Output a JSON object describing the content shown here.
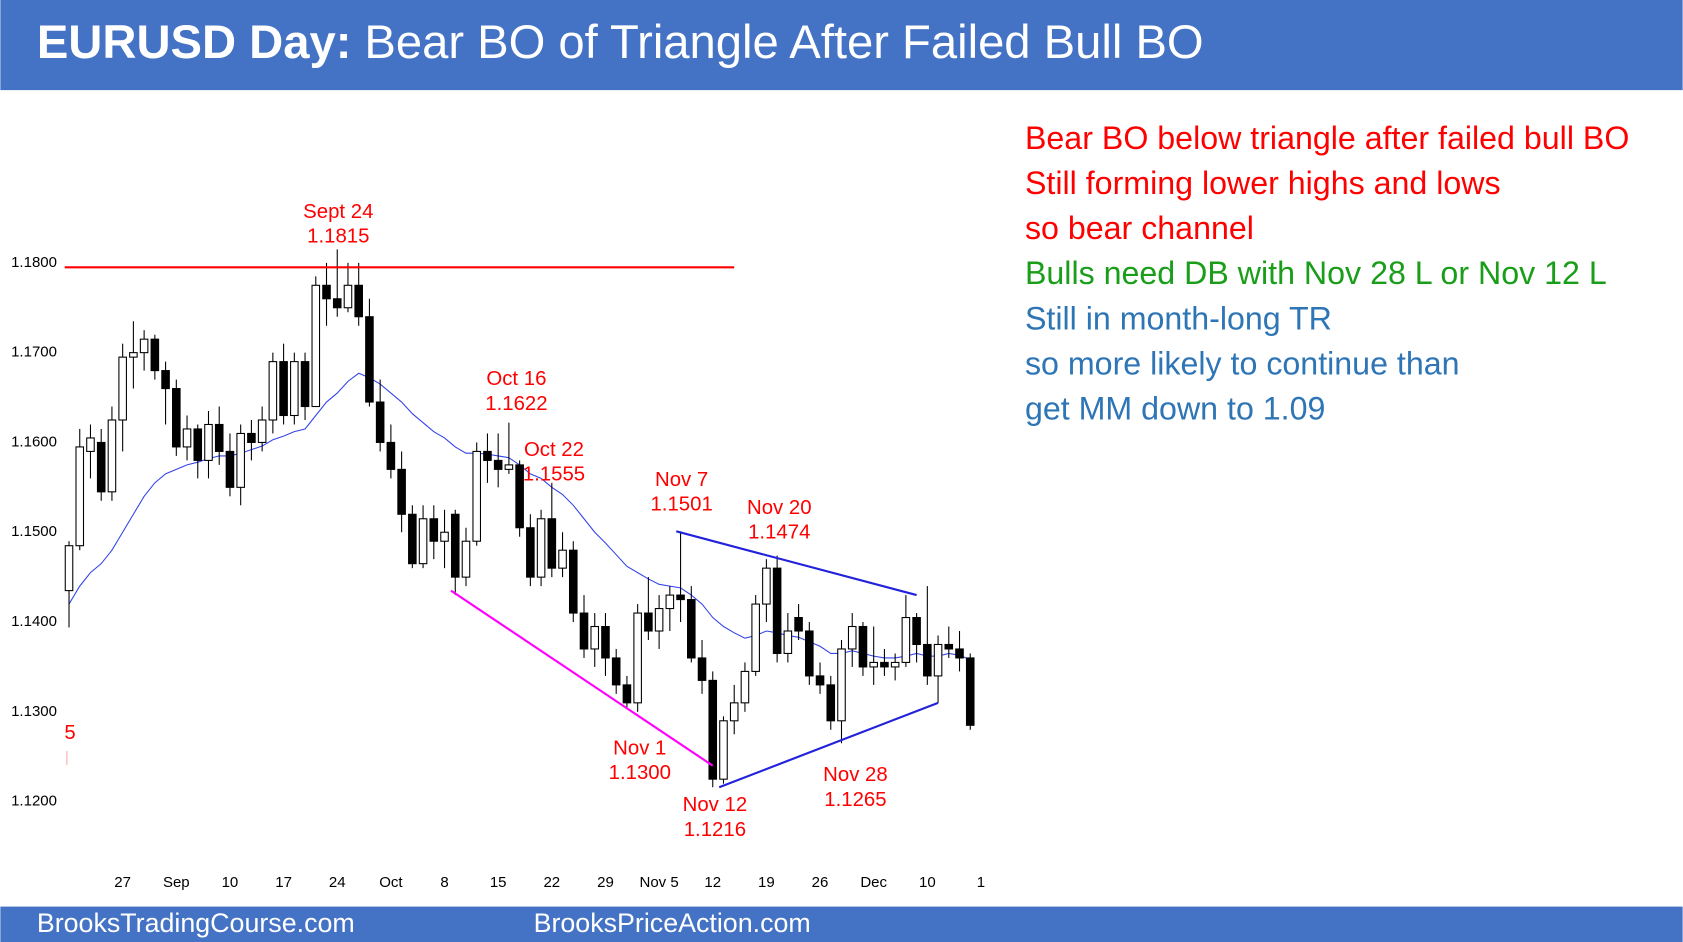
{
  "header": {
    "bold": "EURUSD Day:",
    "title": "Bear BO of Triangle After Failed Bull BO"
  },
  "footer": {
    "left": "BrooksTradingCourse.com",
    "right": "BrooksPriceAction.com"
  },
  "notes": [
    {
      "text": "Bear BO below triangle after failed bull BO",
      "color": "#ff0000"
    },
    {
      "text": "Still forming lower highs and lows",
      "color": "#ff0000"
    },
    {
      "text": "so bear channel",
      "color": "#ff0000"
    },
    {
      "text": "Bulls need DB with Nov 28 L or Nov 12 L",
      "color": "#1a9e1a"
    },
    {
      "text": "Still in month-long TR",
      "color": "#2e75b6"
    },
    {
      "text": "so more likely to continue than",
      "color": "#2e75b6"
    },
    {
      "text": "get MM down to 1.09",
      "color": "#2e75b6"
    }
  ],
  "chart_data": {
    "type": "candlestick",
    "bull_color": "#ffffff",
    "bear_color": "#000000",
    "categories": [
      null,
      null,
      null,
      null,
      null,
      "27",
      null,
      null,
      null,
      null,
      "Sep",
      null,
      null,
      null,
      null,
      "10",
      null,
      null,
      null,
      null,
      "17",
      null,
      null,
      null,
      null,
      "24",
      null,
      null,
      null,
      null,
      "Oct",
      null,
      null,
      null,
      null,
      "8",
      null,
      null,
      null,
      null,
      "15",
      null,
      null,
      null,
      null,
      "22",
      null,
      null,
      null,
      null,
      "29",
      null,
      null,
      null,
      null,
      "Nov 5",
      null,
      null,
      null,
      null,
      "12",
      null,
      null,
      null,
      null,
      "19",
      null,
      null,
      null,
      null,
      "26",
      null,
      null,
      null,
      null,
      "Dec",
      null,
      null,
      null,
      null,
      "10",
      null,
      null,
      null,
      null,
      "1"
    ],
    "open": [
      1.1435,
      1.1485,
      1.159,
      1.16,
      1.1545,
      1.1625,
      1.1695,
      1.17,
      1.1715,
      1.168,
      1.166,
      1.1595,
      1.1615,
      1.158,
      1.162,
      1.159,
      1.155,
      1.161,
      1.16,
      1.1625,
      1.169,
      1.163,
      1.169,
      1.164,
      1.1775,
      1.176,
      1.175,
      1.1775,
      1.174,
      1.1645,
      1.16,
      1.157,
      1.152,
      1.1465,
      1.1515,
      1.149,
      1.152,
      1.145,
      1.149,
      1.159,
      1.158,
      1.157,
      1.1575,
      1.1505,
      1.145,
      1.1515,
      1.146,
      1.148,
      1.141,
      1.137,
      1.1395,
      1.136,
      1.133,
      1.131,
      1.141,
      1.139,
      1.1415,
      1.143,
      1.1425,
      1.136,
      1.1335,
      1.1225,
      1.129,
      1.131,
      1.1345,
      1.142,
      1.146,
      1.1365,
      1.1405,
      1.139,
      1.134,
      1.133,
      1.129,
      1.137,
      1.1395,
      1.135,
      1.1355,
      1.135,
      1.1355,
      1.1405,
      1.1375,
      1.134,
      1.1375,
      1.137,
      1.136,
      null
    ],
    "high": [
      1.149,
      1.1615,
      1.162,
      1.1615,
      1.164,
      1.171,
      1.1735,
      1.1725,
      1.172,
      1.169,
      1.167,
      1.163,
      1.162,
      1.1635,
      1.164,
      1.161,
      1.162,
      1.1625,
      1.164,
      1.17,
      1.171,
      1.17,
      1.17,
      1.1785,
      1.18,
      1.1815,
      1.18,
      1.18,
      1.176,
      1.167,
      1.162,
      1.159,
      1.153,
      1.153,
      1.153,
      1.1525,
      1.1525,
      1.1505,
      1.16,
      1.161,
      1.161,
      1.1622,
      1.158,
      1.152,
      1.1525,
      1.1555,
      1.15,
      1.149,
      1.143,
      1.141,
      1.141,
      1.137,
      1.134,
      1.142,
      1.145,
      1.143,
      1.144,
      1.1501,
      1.144,
      1.138,
      1.1345,
      1.1295,
      1.133,
      1.1355,
      1.143,
      1.147,
      1.1474,
      1.141,
      1.142,
      1.14,
      1.1355,
      1.134,
      1.138,
      1.141,
      1.14,
      1.1395,
      1.137,
      1.1365,
      1.143,
      1.141,
      1.144,
      1.1385,
      1.1395,
      1.139,
      1.1365,
      null
    ],
    "low": [
      1.1394,
      1.148,
      1.156,
      1.1535,
      1.1535,
      1.159,
      1.166,
      1.168,
      1.167,
      1.162,
      1.1585,
      1.158,
      1.156,
      1.156,
      1.1575,
      1.154,
      1.153,
      1.158,
      1.159,
      1.161,
      1.162,
      1.162,
      1.1625,
      1.164,
      1.173,
      1.174,
      1.1745,
      1.173,
      1.164,
      1.159,
      1.156,
      1.15,
      1.146,
      1.146,
      1.147,
      1.146,
      1.143,
      1.144,
      1.1485,
      1.1555,
      1.155,
      1.1565,
      1.1495,
      1.144,
      1.144,
      1.145,
      1.145,
      1.14,
      1.136,
      1.135,
      1.134,
      1.132,
      1.1305,
      1.13,
      1.138,
      1.137,
      1.139,
      1.14,
      1.1355,
      1.132,
      1.1216,
      1.122,
      1.1275,
      1.13,
      1.134,
      1.14,
      1.1355,
      1.1355,
      1.138,
      1.133,
      1.132,
      1.128,
      1.1265,
      1.135,
      1.134,
      1.133,
      1.134,
      1.1335,
      1.135,
      1.1355,
      1.133,
      1.131,
      1.136,
      1.1345,
      1.128,
      null
    ],
    "close": [
      1.1485,
      1.1595,
      1.1605,
      1.1545,
      1.1625,
      1.1695,
      1.17,
      1.1715,
      1.168,
      1.166,
      1.1595,
      1.1615,
      1.158,
      1.162,
      1.159,
      1.155,
      1.161,
      1.16,
      1.1625,
      1.169,
      1.163,
      1.169,
      1.164,
      1.1775,
      1.176,
      1.175,
      1.1775,
      1.174,
      1.1645,
      1.16,
      1.157,
      1.152,
      1.1465,
      1.1515,
      1.149,
      1.15,
      1.145,
      1.149,
      1.159,
      1.158,
      1.157,
      1.1575,
      1.1505,
      1.145,
      1.1515,
      1.146,
      1.148,
      1.141,
      1.137,
      1.1395,
      1.136,
      1.133,
      1.131,
      1.141,
      1.139,
      1.1415,
      1.143,
      1.1425,
      1.136,
      1.1335,
      1.1225,
      1.129,
      1.131,
      1.1345,
      1.142,
      1.146,
      1.1365,
      1.139,
      1.139,
      1.134,
      1.133,
      1.129,
      1.137,
      1.1395,
      1.135,
      1.1355,
      1.135,
      1.1355,
      1.1405,
      1.1375,
      1.134,
      1.1375,
      1.137,
      1.136,
      1.1285,
      null
    ],
    "ema": {
      "color": "#3344e8",
      "values": [
        1.142,
        1.144,
        1.1455,
        1.1465,
        1.148,
        1.15,
        1.152,
        1.154,
        1.1555,
        1.1565,
        1.157,
        1.1575,
        1.1578,
        1.1582,
        1.1585,
        1.1585,
        1.1588,
        1.1592,
        1.1596,
        1.1603,
        1.1607,
        1.1612,
        1.1615,
        1.163,
        1.1645,
        1.1655,
        1.1668,
        1.1677,
        1.1672,
        1.1665,
        1.1655,
        1.1645,
        1.1632,
        1.1622,
        1.1612,
        1.1605,
        1.1595,
        1.1588,
        1.1588,
        1.1587,
        1.1585,
        1.1583,
        1.1575,
        1.1565,
        1.156,
        1.155,
        1.1542,
        1.153,
        1.1515,
        1.15,
        1.1488,
        1.1475,
        1.1462,
        1.1455,
        1.1448,
        1.1442,
        1.144,
        1.1438,
        1.143,
        1.142,
        1.1405,
        1.1395,
        1.1388,
        1.1382,
        1.1385,
        1.139,
        1.1388,
        1.1385,
        1.1383,
        1.1378,
        1.1373,
        1.1365,
        1.1365,
        1.1368,
        1.1365,
        1.1362,
        1.136,
        1.136,
        1.1362,
        1.1365,
        1.1362,
        1.1362,
        1.1365,
        1.1363,
        1.1358,
        null
      ]
    },
    "lines": [
      {
        "x": [
          0,
          62
        ],
        "y": [
          1.1795,
          1.1795
        ],
        "color": "#ff0000"
      },
      {
        "x": [
          57,
          79
        ],
        "y": [
          1.1501,
          1.143
        ],
        "color": "#2222dd"
      },
      {
        "x": [
          61,
          81
        ],
        "y": [
          1.1216,
          1.131
        ],
        "color": "#2222dd"
      },
      {
        "x": [
          36,
          60
        ],
        "y": [
          1.1435,
          1.124
        ],
        "color": "#ff00ff"
      }
    ],
    "annotations": [
      {
        "lines": [
          "Sept 24",
          "1.1815"
        ]
      },
      {
        "lines": [
          "Oct 16",
          "1.1622"
        ]
      },
      {
        "lines": [
          "Oct 22",
          "1.1555"
        ]
      },
      {
        "lines": [
          "Nov 7",
          "1.1501"
        ]
      },
      {
        "lines": [
          "Nov 20",
          "1.1474"
        ]
      },
      {
        "lines": [
          "Nov 1",
          "1.1300"
        ]
      },
      {
        "lines": [
          "Nov 12",
          "1.1216"
        ]
      },
      {
        "lines": [
          "Nov 28",
          "1.1265"
        ]
      },
      {
        "lines": [
          "5"
        ]
      }
    ],
    "annotation_color": "#ff0000",
    "ylim": [
      1.115,
      1.19
    ],
    "yticks": [
      {
        "value": 1.12,
        "label": "1.1200"
      },
      {
        "value": 1.13,
        "label": "1.1300"
      },
      {
        "value": 1.14,
        "label": "1.1400"
      },
      {
        "value": 1.15,
        "label": "1.1500"
      },
      {
        "value": 1.16,
        "label": "1.1600"
      },
      {
        "value": 1.17,
        "label": "1.1700"
      },
      {
        "value": 1.18,
        "label": "1.1800"
      }
    ],
    "grid": false
  }
}
